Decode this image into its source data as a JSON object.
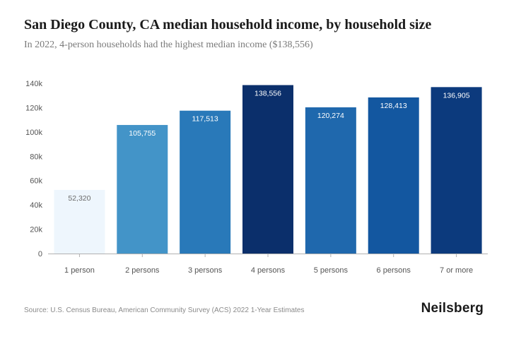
{
  "title": "San Diego County, CA median household income, by household size",
  "subtitle": "In 2022, 4-person households had the highest median income ($138,556)",
  "source": "Source: U.S. Census Bureau, American Community Survey (ACS) 2022 1-Year Estimates",
  "logo": "Neilsberg",
  "chart_data": {
    "type": "bar",
    "categories": [
      "1 person",
      "2 persons",
      "3 persons",
      "4 persons",
      "5 persons",
      "6 persons",
      "7 or more"
    ],
    "values": [
      52320,
      105755,
      117513,
      138556,
      120274,
      128413,
      136905
    ],
    "value_labels": [
      "52,320",
      "105,755",
      "117,513",
      "138,556",
      "120,274",
      "128,413",
      "136,905"
    ],
    "bar_colors": [
      "#eef6fd",
      "#4394c8",
      "#2979b9",
      "#0b2f6b",
      "#1f68ad",
      "#1357a0",
      "#0c3a7d"
    ],
    "label_colors": [
      "#6a6a6a",
      "#ffffff",
      "#ffffff",
      "#ffffff",
      "#ffffff",
      "#ffffff",
      "#ffffff"
    ],
    "yticks": [
      0,
      20000,
      40000,
      60000,
      80000,
      100000,
      120000,
      140000
    ],
    "ytick_labels": [
      "0",
      "20k",
      "40k",
      "60k",
      "80k",
      "100k",
      "120k",
      "140k"
    ],
    "ylim": [
      0,
      140000
    ],
    "xlabel": "",
    "ylabel": "",
    "grid": false,
    "legend": false
  }
}
